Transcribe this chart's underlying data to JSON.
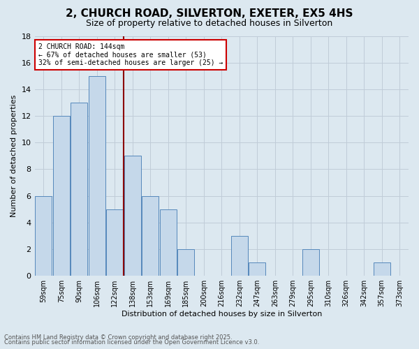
{
  "title": "2, CHURCH ROAD, SILVERTON, EXETER, EX5 4HS",
  "subtitle": "Size of property relative to detached houses in Silverton",
  "xlabel": "Distribution of detached houses by size in Silverton",
  "ylabel": "Number of detached properties",
  "footnote1": "Contains HM Land Registry data © Crown copyright and database right 2025.",
  "footnote2": "Contains public sector information licensed under the Open Government Licence v3.0.",
  "annotation_title": "2 CHURCH ROAD: 144sqm",
  "annotation_line1": "← 67% of detached houses are smaller (53)",
  "annotation_line2": "32% of semi-detached houses are larger (25) →",
  "bar_color": "#c5d8ea",
  "bar_edge_color": "#5588bb",
  "annotation_box_color": "#ffffff",
  "annotation_box_edge": "#cc0000",
  "vline_color": "#8b0000",
  "categories": [
    "59sqm",
    "75sqm",
    "90sqm",
    "106sqm",
    "122sqm",
    "138sqm",
    "153sqm",
    "169sqm",
    "185sqm",
    "200sqm",
    "216sqm",
    "232sqm",
    "247sqm",
    "263sqm",
    "279sqm",
    "295sqm",
    "310sqm",
    "326sqm",
    "342sqm",
    "357sqm",
    "373sqm"
  ],
  "values": [
    6,
    12,
    13,
    15,
    5,
    9,
    6,
    5,
    2,
    0,
    0,
    3,
    1,
    0,
    0,
    2,
    0,
    0,
    0,
    1,
    0
  ],
  "vline_x": 4.5,
  "ylim": [
    0,
    18
  ],
  "yticks": [
    0,
    2,
    4,
    6,
    8,
    10,
    12,
    14,
    16,
    18
  ],
  "grid_color": "#c0ccd8",
  "background_color": "#dce8f0",
  "plot_bg_color": "#dce8f0",
  "title_fontsize": 11,
  "subtitle_fontsize": 9,
  "tick_fontsize": 7,
  "ylabel_fontsize": 8,
  "xlabel_fontsize": 8,
  "annotation_fontsize": 7,
  "footnote_fontsize": 6
}
